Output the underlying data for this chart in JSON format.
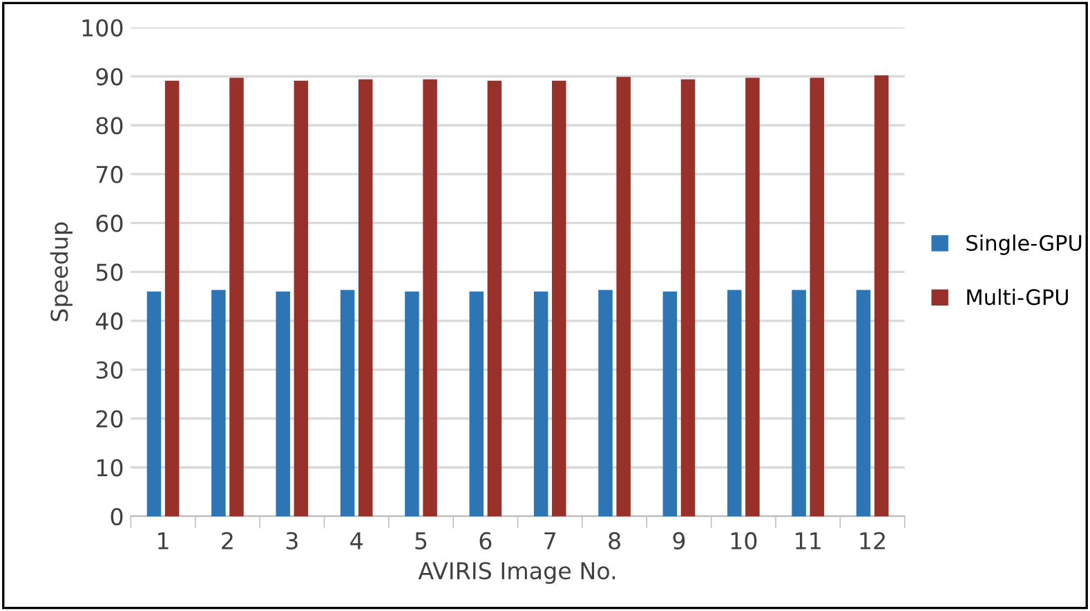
{
  "chart_data": {
    "type": "bar",
    "xlabel": "AVIRIS Image No.",
    "ylabel": "Speedup",
    "categories": [
      "1",
      "2",
      "3",
      "4",
      "5",
      "6",
      "7",
      "8",
      "9",
      "10",
      "11",
      "12"
    ],
    "series": [
      {
        "name": "Single-GPU",
        "color": "#2e75b6",
        "values": [
          46,
          46.3,
          46,
          46.3,
          46,
          46,
          46,
          46.3,
          46,
          46.3,
          46.3,
          46.3
        ]
      },
      {
        "name": "Multi-GPU",
        "color": "#99312b",
        "values": [
          89.1,
          89.7,
          89.1,
          89.4,
          89.4,
          89.1,
          89.1,
          89.9,
          89.4,
          89.7,
          89.7,
          90.2
        ]
      }
    ],
    "ylim": [
      0,
      100
    ],
    "yticks": [
      0,
      10,
      20,
      30,
      40,
      50,
      60,
      70,
      80,
      90,
      100
    ],
    "grid": "y",
    "legend": "right"
  }
}
